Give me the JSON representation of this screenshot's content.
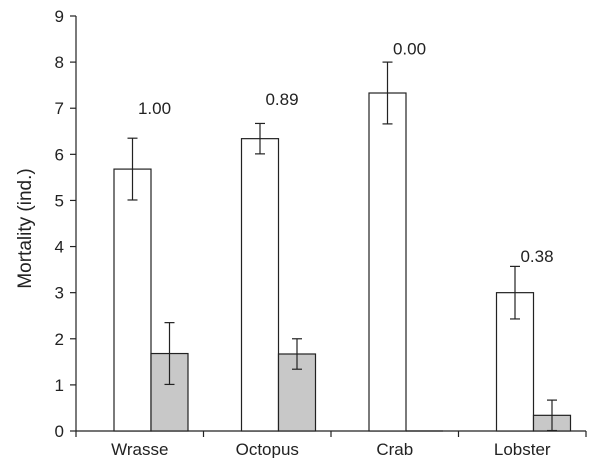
{
  "chart_data": {
    "type": "bar",
    "title": "",
    "xlabel": "",
    "ylabel": "Mortality (ind.)",
    "ylim": [
      0,
      9
    ],
    "yticks": [
      0,
      1,
      2,
      3,
      4,
      5,
      6,
      7,
      8,
      9
    ],
    "grid": false,
    "legend": "none",
    "categories": [
      "Wrasse",
      "Octopus",
      "Crab",
      "Lobster"
    ],
    "series": [
      {
        "color": "#ffffff",
        "values": [
          5.68,
          6.34,
          7.33,
          3.0
        ],
        "errors": [
          0.67,
          0.33,
          0.67,
          0.57
        ]
      },
      {
        "color": "#c8c8c8",
        "values": [
          1.68,
          1.67,
          0.0,
          0.34
        ],
        "errors": [
          0.67,
          0.33,
          0.0,
          0.33
        ]
      }
    ],
    "annotations": [
      "1.00",
      "0.89",
      "0.00",
      "0.38"
    ],
    "annotation_y": [
      7.0,
      7.2,
      8.3,
      3.8
    ]
  }
}
